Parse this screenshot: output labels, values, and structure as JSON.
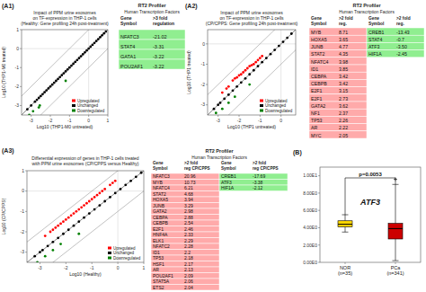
{
  "chart_data": [
    {
      "type": "scatter",
      "title": "Impact of PPM urine exosomes\non TF-expression in THP-1 cells\n(Healthy: Gene profiling 24h post-treatment)",
      "x_label": "Log10 (THP1-M0 untreated)",
      "y_label": "Log10 (THP1-M0 treated)",
      "annotations": [
        "(A1)"
      ],
      "xlim": [
        -3.5,
        1.0
      ],
      "ylim": [
        -3.5,
        1.0
      ],
      "xticks": [
        -3,
        -2,
        -1,
        0,
        1
      ],
      "yticks": [
        -3,
        -2,
        -1,
        0,
        1
      ],
      "legend": "lower right",
      "series": [
        {
          "name": "Upregulated",
          "color": "red",
          "x": [],
          "values": []
        },
        {
          "name": "Unchanged",
          "color": "black",
          "x": [
            -3.2,
            -3.0,
            -2.8,
            -2.7,
            -2.6,
            -2.5,
            -2.4,
            -2.3,
            -2.2,
            -2.1,
            -2.0,
            -1.9,
            -1.8,
            -1.7,
            -1.6,
            -1.5,
            -1.4,
            -1.3,
            -1.2,
            -1.1,
            -1.0,
            -0.9,
            -0.8,
            -0.7,
            -0.6,
            -0.5,
            -0.4,
            -0.3,
            -0.2,
            -0.1,
            0.0,
            0.1,
            0.2,
            0.3,
            0.4,
            0.5,
            0.6,
            0.7,
            0.8,
            0.9
          ],
          "values": [
            -3.2,
            -3.0,
            -2.8,
            -2.7,
            -2.6,
            -2.5,
            -2.4,
            -2.3,
            -2.2,
            -2.1,
            -2.0,
            -1.9,
            -1.8,
            -1.7,
            -1.6,
            -1.5,
            -1.4,
            -1.3,
            -1.2,
            -1.1,
            -1.0,
            -0.9,
            -0.8,
            -0.7,
            -0.6,
            -0.5,
            -0.4,
            -0.3,
            -0.2,
            -0.1,
            0.0,
            0.1,
            0.2,
            0.3,
            0.4,
            0.5,
            0.6,
            0.7,
            0.8,
            0.9
          ]
        },
        {
          "name": "Downregulated",
          "color": "green",
          "x": [
            -3.1,
            -2.9,
            -2.6,
            -2.55,
            -1.2
          ],
          "values": [
            -3.5,
            -3.3,
            -3.1,
            -3.0,
            -1.7
          ]
        }
      ]
    },
    {
      "type": "table",
      "title": "RT2 Profiler",
      "subtitle": "Human Transcription Factors",
      "headers": [
        "Gene\nSymbol",
        ">3 fold\nregulation"
      ],
      "series": [
        {
          "color": "#90EE90",
          "categories": [
            "NFATC3",
            "STAT4",
            "GATA1",
            "POU2AF1"
          ],
          "values": [
            -21.02,
            -3.31,
            -3.22,
            -3.22
          ],
          "value_labels": [
            "-21.02",
            "-3.31",
            "-3.22",
            "-3.22"
          ]
        }
      ]
    },
    {
      "type": "scatter",
      "title": "Impact of PPM urine exosomes\non TF-expression in THP-1 cells\n(CP/CPPS: Gene profiling 24h post-treatment)",
      "x_label": "Log10 (THP1 untreated)",
      "y_label": "Log10 (THP1 treated)",
      "annotations": [
        "(A2)"
      ],
      "xlim": [
        -3.5,
        0.7
      ],
      "ylim": [
        -3.5,
        0.7
      ],
      "xticks": [
        -3,
        -2,
        -1,
        0
      ],
      "yticks": [
        -3,
        -2,
        -1,
        0
      ],
      "legend": "lower right",
      "series": [
        {
          "name": "Upregulated",
          "color": "red",
          "x": [
            -2.8,
            -2.6,
            -2.5,
            -2.3,
            -2.2,
            -2.1,
            -2.0,
            -1.9,
            -1.8,
            -1.7,
            -1.6,
            -1.5,
            -1.4,
            -1.3,
            -1.2,
            -1.1,
            -1.0,
            -0.9
          ],
          "values": [
            -2.4,
            -2.2,
            -2.1,
            -1.8,
            -1.7,
            -1.65,
            -1.55,
            -1.5,
            -1.4,
            -1.3,
            -1.2,
            -1.1,
            -1.05,
            -1.0,
            -0.9,
            -0.8,
            -0.7,
            -0.6
          ]
        },
        {
          "name": "Unchanged",
          "color": "black",
          "x": [
            -3.2,
            -3.0,
            -2.9,
            -2.7,
            -2.5,
            -2.3,
            -2.1,
            -1.9,
            -1.7,
            -1.5,
            -1.3,
            -1.1,
            -0.9,
            -0.7,
            -0.5,
            -0.3,
            -0.1,
            0.1,
            0.3,
            0.5
          ],
          "values": [
            -3.2,
            -3.0,
            -2.9,
            -2.7,
            -2.5,
            -2.3,
            -2.1,
            -1.9,
            -1.7,
            -1.5,
            -1.3,
            -1.1,
            -0.9,
            -0.7,
            -0.5,
            -0.3,
            -0.1,
            0.1,
            0.3,
            0.5
          ]
        },
        {
          "name": "Downregulated",
          "color": "green",
          "x": [
            -3.1,
            -2.8,
            -2.5,
            -2.2,
            -1.5
          ],
          "values": [
            -3.4,
            -3.2,
            -2.9,
            -2.6,
            -2.0
          ]
        }
      ]
    },
    {
      "type": "table",
      "title": "RT2 Profiler",
      "subtitle": "Human Transcription Factors",
      "headers": [
        "Gene\nSymbol",
        ">2 fold\nreg."
      ],
      "series": [
        {
          "color": "#FFAAAA",
          "categories": [
            "MYB",
            "HOXA5",
            "JUNB",
            "STAT2",
            "NFATC4",
            "ID1",
            "CEBPA",
            "CEBPB",
            "E2F1",
            "E2F1",
            "GATA2",
            "NF1",
            "TP53",
            "AR",
            "MYC"
          ],
          "values": [
            8.71,
            3.65,
            4.77,
            4.35,
            3.98,
            3.85,
            3.42,
            3.42,
            3.15,
            2.73,
            3.62,
            2.37,
            2.26,
            2.22,
            2.05
          ],
          "value_labels": [
            "8.71",
            "3.65",
            "4.77",
            "4.35",
            "3.98",
            "3.85",
            "3.42",
            "3.42",
            "3.15",
            "2.73",
            "3.62",
            "2.37",
            "2.26",
            "2.22",
            "2.05"
          ]
        },
        {
          "color": "#90EE90",
          "categories": [
            "CREB1",
            "STAT4",
            "ATF3",
            "HIF1A"
          ],
          "values": [
            -13.43,
            -0.7,
            -3.5,
            -2.45
          ],
          "value_labels": [
            "-13.43",
            "-0.7",
            "-3.50",
            "-2.45"
          ]
        }
      ]
    },
    {
      "type": "scatter",
      "title": "Differential expression of genes in THP-1 cells treated\nwith PPM urine exosomes (CP/CPPS versus Healthy)",
      "x_label": "Log10 (Healthy)",
      "y_label": "Log10 (CP/CPPS)",
      "annotations": [
        "(A3)"
      ],
      "xlim": [
        -3.5,
        1.0
      ],
      "ylim": [
        -3.5,
        1.0
      ],
      "xticks": [
        -3,
        -2,
        -1,
        0,
        1
      ],
      "yticks": [
        -3,
        -2,
        -1,
        0,
        1
      ],
      "legend": "lower right",
      "series": [
        {
          "name": "Upregulated",
          "color": "red",
          "x": [
            -2.8,
            -2.6,
            -2.5,
            -2.4,
            -2.3,
            -2.2,
            -2.1,
            -2.0,
            -1.9,
            -1.8,
            -1.7,
            -1.6,
            -1.5,
            -1.4,
            -1.3,
            -1.2,
            -1.1,
            -1.0,
            -0.9,
            -0.8,
            -0.7,
            -0.6,
            -0.5,
            -0.3,
            -0.2,
            -0.1
          ],
          "values": [
            -2.2,
            -2.0,
            -1.9,
            -1.8,
            -1.7,
            -1.6,
            -1.5,
            -1.4,
            -1.3,
            -1.2,
            -1.1,
            -1.0,
            -0.9,
            -0.8,
            -0.7,
            -0.6,
            -0.5,
            -0.4,
            -0.3,
            -0.2,
            -0.1,
            0.0,
            0.1,
            0.3,
            0.4,
            0.5
          ]
        },
        {
          "name": "Unchanged",
          "color": "black",
          "x": [
            -3.2,
            -3.0,
            -2.9,
            -2.7,
            -2.5,
            -2.3,
            -2.1,
            -1.9,
            -1.7,
            -1.5,
            -1.3,
            -1.1,
            -0.9,
            -0.7,
            -0.5,
            -0.3,
            -0.1,
            0.1,
            0.3,
            0.5,
            0.7,
            0.9
          ],
          "values": [
            -3.2,
            -3.0,
            -2.9,
            -2.7,
            -2.5,
            -2.3,
            -2.1,
            -1.9,
            -1.7,
            -1.5,
            -1.3,
            -1.1,
            -0.9,
            -0.7,
            -0.5,
            -0.3,
            -0.1,
            0.1,
            0.3,
            0.5,
            0.7,
            0.9
          ]
        },
        {
          "name": "Downregulated",
          "color": "green",
          "x": [
            -3.1,
            -2.8,
            -2.5,
            -2.2,
            -1.5
          ],
          "values": [
            -3.5,
            -3.2,
            -2.9,
            -2.6,
            -2.1
          ]
        }
      ]
    },
    {
      "type": "table",
      "title": "RT2 Profiler",
      "subtitle": "Human Transcription Factors",
      "headers": [
        "Gene\nSymbol",
        ">2 fold\nreg CP/CPPS"
      ],
      "series": [
        {
          "color": "#FFAAAA",
          "categories": [
            "NFATC3",
            "MYB",
            "NFATC4",
            "STAT2",
            "HOXA5",
            "JUNB",
            "GATA2",
            "CEBPA",
            "CEBPB",
            "E2F1",
            "HNF4A",
            "ELK1",
            "NFATC2",
            "ID1",
            "TP53",
            "HSF1",
            "AR",
            "POU2AF1",
            "STAT5A",
            "ETS2"
          ],
          "values": [
            20.96,
            10.73,
            6.21,
            4.68,
            3.94,
            3.29,
            2.98,
            2.88,
            2.54,
            2.46,
            2.33,
            2.29,
            2.28,
            2.2,
            2.18,
            2.17,
            2.13,
            2.09,
            2.06,
            2.04
          ],
          "value_labels": [
            "20.96",
            "10.73",
            "6.21",
            "4.68",
            "3.94",
            "3.29",
            "2.98",
            "2.88",
            "2.54",
            "2.46",
            "2.33",
            "2.29",
            "2.28",
            "2.2",
            "2.18",
            "2.17",
            "2.13",
            "2.09",
            "2.06",
            "2.04"
          ]
        },
        {
          "color": "#90EE90",
          "categories": [
            "CREB1",
            "ATF3",
            "HIF1A"
          ],
          "values": [
            -17.69,
            -3.38,
            -2.12
          ],
          "value_labels": [
            "-17.69",
            "-3.38",
            "-2.12"
          ]
        }
      ]
    },
    {
      "type": "box",
      "title": "(B)",
      "annotations": [
        "p=0.0053",
        "ATF3"
      ],
      "categories": [
        "NOR\n(n=35)",
        "PCa\n(n=341)"
      ],
      "colors": [
        "#FFD700",
        "#CC0000"
      ],
      "q1": [
        4.1,
        2.7
      ],
      "median": [
        4.4,
        3.9
      ],
      "q3": [
        4.8,
        4.5
      ],
      "whisker_low": [
        3.5,
        0.2
      ],
      "whisker_high": [
        5.5,
        9.0
      ],
      "outliers": [
        [],
        [
          9.6
        ]
      ],
      "ylim": [
        0.0,
        11.0
      ],
      "yticks": [
        {
          "value": 0,
          "label": "0.00E0"
        },
        {
          "value": 2,
          "label": "2.00E0"
        },
        {
          "value": 4,
          "label": "4.00E0"
        },
        {
          "value": 6,
          "label": "6.00E0"
        },
        {
          "value": 8,
          "label": "8.00E0"
        },
        {
          "value": 10,
          "label": "1.00E1"
        }
      ]
    }
  ]
}
